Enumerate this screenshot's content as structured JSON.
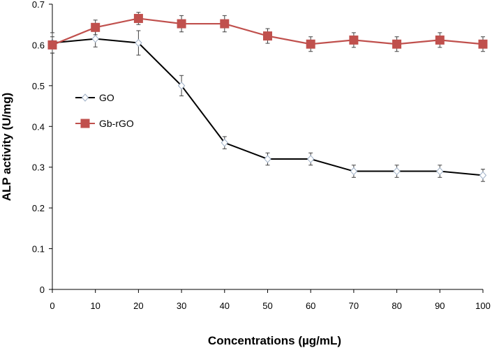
{
  "chart_data": {
    "type": "line",
    "title": "",
    "xlabel": "Concentrations (µg/mL)",
    "ylabel": "ALP activity (U/mg)",
    "x": [
      0,
      10,
      20,
      30,
      40,
      50,
      60,
      70,
      80,
      90,
      100
    ],
    "xlim": [
      0,
      100
    ],
    "ylim": [
      0,
      0.7
    ],
    "x_ticks": [
      "0",
      "10",
      "20",
      "30",
      "40",
      "50",
      "60",
      "70",
      "80",
      "90",
      "100"
    ],
    "y_ticks": [
      "0",
      "0.1",
      "0.2",
      "0.3",
      "0.4",
      "0.5",
      "0.6",
      "0.7"
    ],
    "grid": false,
    "legend_position": "left",
    "series": [
      {
        "name": "GO",
        "color": "#000000",
        "marker": "diamond-open",
        "values": [
          0.605,
          0.615,
          0.605,
          0.5,
          0.36,
          0.32,
          0.32,
          0.29,
          0.29,
          0.29,
          0.28
        ],
        "errors": [
          0.025,
          0.02,
          0.03,
          0.025,
          0.015,
          0.015,
          0.015,
          0.015,
          0.015,
          0.015,
          0.015
        ]
      },
      {
        "name": "Gb-rGO",
        "color": "#c0504d",
        "marker": "square",
        "values": [
          0.6,
          0.643,
          0.665,
          0.652,
          0.652,
          0.622,
          0.602,
          0.612,
          0.602,
          0.612,
          0.602
        ],
        "errors": [
          0.02,
          0.018,
          0.015,
          0.02,
          0.02,
          0.018,
          0.018,
          0.018,
          0.018,
          0.018,
          0.018
        ]
      }
    ]
  }
}
